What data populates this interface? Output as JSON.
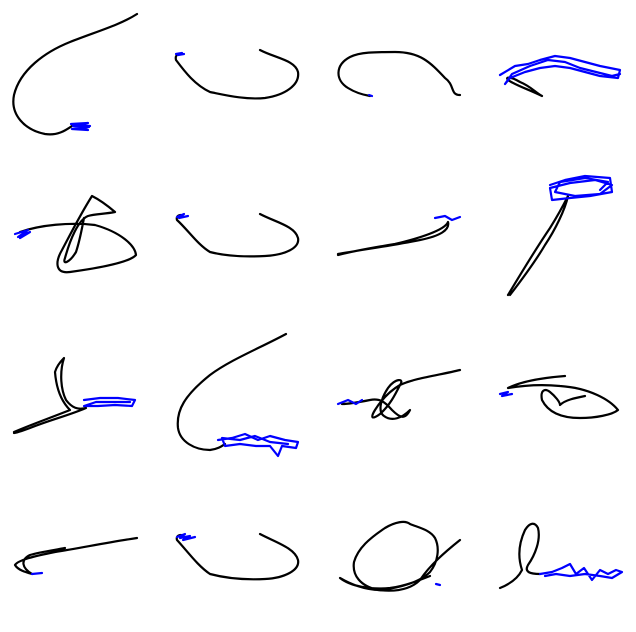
{
  "figure": {
    "grid": {
      "rows": 4,
      "cols": 4
    },
    "colors": {
      "background": "#ffffff",
      "primary_stroke": "#000000",
      "secondary_stroke": "#0000ff"
    }
  }
}
